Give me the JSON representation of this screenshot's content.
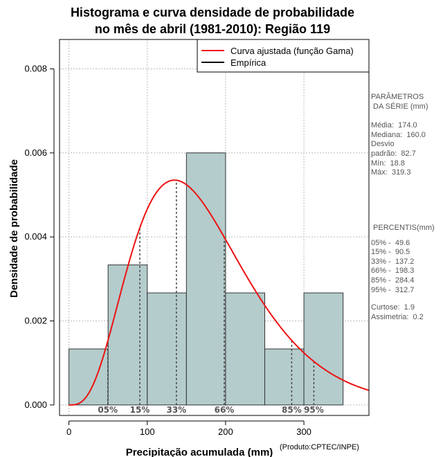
{
  "chart_data": {
    "type": "bar",
    "title_lines": [
      "Histograma e curva densidade de probabilidade",
      "no mês de abril (1981-2010): Região 119"
    ],
    "xlabel": "Precipitação acumulada (mm)",
    "ylabel": "Densidade de probabilidade",
    "xlim": [
      -12,
      383
    ],
    "ylim": [
      -0.00025,
      0.0087
    ],
    "x_ticks": [
      0,
      100,
      200,
      300
    ],
    "y_ticks": [
      0.0,
      0.002,
      0.004,
      0.006,
      0.008
    ],
    "y_tick_labels": [
      "0.000",
      "0.002",
      "0.004",
      "0.006",
      "0.008"
    ],
    "grid": true,
    "bar_color": "#b4cccc",
    "histogram": {
      "bin_edges": [
        0,
        50,
        100,
        150,
        200,
        250,
        300,
        350
      ],
      "density": [
        0.001333,
        0.003333,
        0.002667,
        0.006,
        0.002667,
        0.001333,
        0.002667
      ]
    },
    "fitted_curve": {
      "name": "Curva ajustada (função Gama)",
      "color": "#ee1111",
      "distribution": "gamma",
      "mean": 174.0,
      "variance": 6839
    },
    "empirical_legend": {
      "name": "Empírica",
      "color": "#000000"
    },
    "legend_position": "top-right",
    "percentile_markers": [
      {
        "label": "05%",
        "value": 49.6
      },
      {
        "label": "15%",
        "value": 90.5
      },
      {
        "label": "33%",
        "value": 137.2
      },
      {
        "label": "66%",
        "value": 198.3
      },
      {
        "label": "85%",
        "value": 284.4
      },
      {
        "label": "95%",
        "value": 312.7
      }
    ]
  },
  "side_panel": {
    "params_title_1": "PARÂMETROS",
    "params_title_2": " DA SÉRIE (mm)",
    "media": "Média:  174.0",
    "mediana": "Mediana:  160.0",
    "desvio_1": "Desvio",
    "desvio_2": "padrão:  82.7",
    "min": "Mín:  18.8",
    "max": "Máx:  319.3",
    "percentis_title": " PERCENTIS(mm)",
    "p05": "05% -  49.6",
    "p15": "15% -  90.5",
    "p33": "33% -  137.2",
    "p66": "66% -  198.3",
    "p85": "85% -  284.4",
    "p95": "95% -  312.7",
    "curtose": "Curtose:  1.9",
    "assimetria": "Assimetria:  0.2"
  },
  "credit": "(Produto:CPTEC/INPE)"
}
